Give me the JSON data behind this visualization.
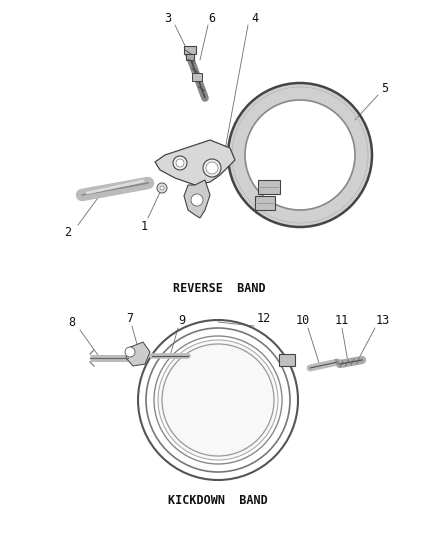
{
  "background_color": "#ffffff",
  "reverse_band_label": "REVERSE  BAND",
  "kickdown_band_label": "KICKDOWN  BAND",
  "line_color": "#555555",
  "text_color": "#111111",
  "callout_color": "#777777",
  "label_fontsize": 8.5,
  "number_fontsize": 8.5
}
